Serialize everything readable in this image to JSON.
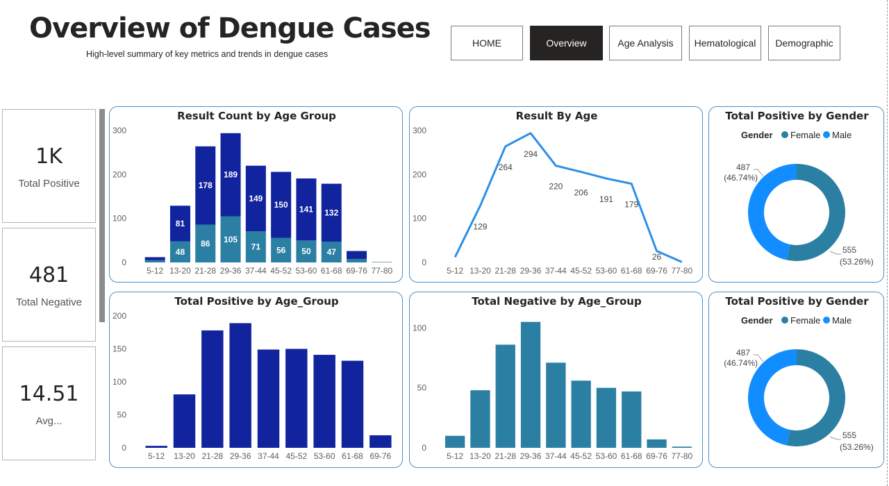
{
  "header": {
    "title": "Overview of Dengue Cases",
    "subtitle": "High-level summary of key metrics and trends in dengue cases"
  },
  "nav": [
    {
      "label": "HOME",
      "active": false
    },
    {
      "label": "Overview",
      "active": true
    },
    {
      "label": "Age Analysis",
      "active": false
    },
    {
      "label": "Hematological",
      "active": false
    },
    {
      "label": "Demographic",
      "active": false
    }
  ],
  "kpis": [
    {
      "value": "1K",
      "label": "Total Positive"
    },
    {
      "value": "481",
      "label": "Total Negative"
    },
    {
      "value": "14.51",
      "label": "Avg..."
    }
  ],
  "colors": {
    "dark_blue": "#12239e",
    "teal": "#2a7fa3",
    "line_blue": "#2b8fe8",
    "female": "#2a7fa3",
    "male": "#118dff",
    "panel_border": "#4a90c8"
  },
  "chart_data": [
    {
      "type": "bar",
      "stacked": true,
      "title": "Result Count by Age Group",
      "categories": [
        "5-12",
        "13-20",
        "21-28",
        "29-36",
        "37-44",
        "45-52",
        "53-60",
        "61-68",
        "69-76",
        "77-80"
      ],
      "series": [
        {
          "values": [
            5,
            48,
            86,
            105,
            71,
            56,
            50,
            47,
            8,
            1
          ],
          "color": "#2a7fa3"
        },
        {
          "values": [
            7,
            81,
            178,
            189,
            149,
            150,
            141,
            132,
            18,
            0
          ],
          "color": "#12239e"
        }
      ],
      "labels": [
        {
          "bottom": "",
          "top": ""
        },
        {
          "bottom": "48",
          "top": "81"
        },
        {
          "bottom": "86",
          "top": "178"
        },
        {
          "bottom": "105",
          "top": "189"
        },
        {
          "bottom": "71",
          "top": "149"
        },
        {
          "bottom": "56",
          "top": "150"
        },
        {
          "bottom": "50",
          "top": "141"
        },
        {
          "bottom": "47",
          "top": "132"
        },
        {
          "bottom": "",
          "top": ""
        },
        {
          "bottom": "",
          "top": ""
        }
      ],
      "yticks": [
        0,
        100,
        200,
        300
      ],
      "ylim": [
        0,
        300
      ],
      "grid": false
    },
    {
      "type": "line",
      "title": "Result By Age",
      "categories": [
        "5-12",
        "13-20",
        "21-28",
        "29-36",
        "37-44",
        "45-52",
        "53-60",
        "61-68",
        "69-76",
        "77-80"
      ],
      "values": [
        12,
        129,
        264,
        294,
        220,
        206,
        191,
        179,
        26,
        1
      ],
      "labels": [
        "",
        "129",
        "264",
        "294",
        "220",
        "206",
        "191",
        "179",
        "26",
        ""
      ],
      "yticks": [
        0,
        100,
        200,
        300
      ],
      "ylim": [
        0,
        300
      ],
      "grid": false
    },
    {
      "type": "pie",
      "donut": true,
      "title": "Total Positive by Gender",
      "legend_title": "Gender",
      "legend_position": "top",
      "slices": [
        {
          "name": "Female",
          "value": 555,
          "label": "555",
          "pct": "(53.26%)",
          "color": "#2a7fa3"
        },
        {
          "name": "Male",
          "value": 487,
          "label": "487",
          "pct": "(46.74%)",
          "color": "#118dff"
        }
      ]
    },
    {
      "type": "bar",
      "title": "Total Positive by Age_Group",
      "categories": [
        "5-12",
        "13-20",
        "21-28",
        "29-36",
        "37-44",
        "45-52",
        "53-60",
        "61-68",
        "69-76"
      ],
      "values": [
        3,
        81,
        178,
        189,
        149,
        150,
        141,
        132,
        19
      ],
      "color": "#12239e",
      "yticks": [
        0,
        50,
        100,
        150,
        200
      ],
      "ylim": [
        0,
        200
      ],
      "grid": false
    },
    {
      "type": "bar",
      "title": "Total Negative by Age_Group",
      "categories": [
        "5-12",
        "13-20",
        "21-28",
        "29-36",
        "37-44",
        "45-52",
        "53-60",
        "61-68",
        "69-76",
        "77-80"
      ],
      "values": [
        10,
        48,
        86,
        105,
        71,
        56,
        50,
        47,
        7,
        1
      ],
      "color": "#2a7fa3",
      "yticks": [
        0,
        50,
        100
      ],
      "ylim": [
        0,
        110
      ],
      "grid": false
    },
    {
      "type": "pie",
      "donut": true,
      "title": "Total Positive by Gender",
      "legend_title": "Gender",
      "legend_position": "top",
      "slices": [
        {
          "name": "Female",
          "value": 555,
          "label": "555",
          "pct": "(53.26%)",
          "color": "#2a7fa3"
        },
        {
          "name": "Male",
          "value": 487,
          "label": "487",
          "pct": "(46.74%)",
          "color": "#118dff"
        }
      ]
    }
  ]
}
